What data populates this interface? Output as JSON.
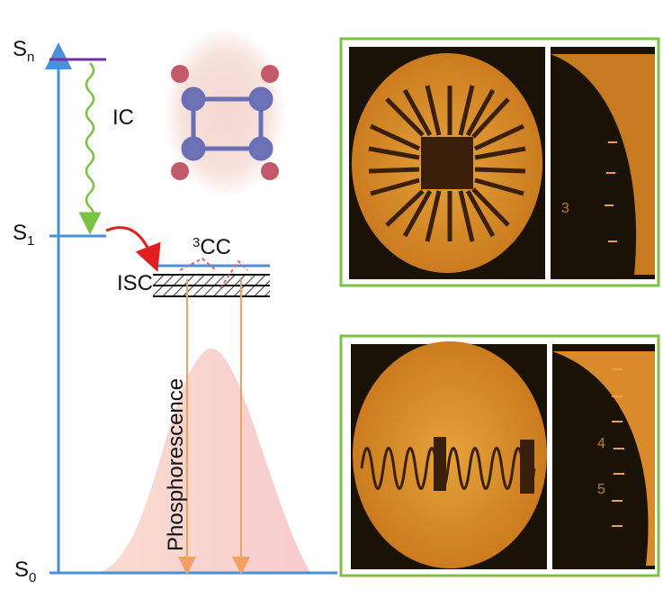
{
  "levels": [
    {
      "symbol": "S",
      "subscript": "n"
    },
    {
      "symbol": "S",
      "subscript": "1"
    },
    {
      "symbol": "S",
      "subscript": "0"
    }
  ],
  "transitions": {
    "internal_conversion": "IC",
    "intersystem_crossing": "ISC",
    "emission": "Phosphorescence"
  },
  "triplet_state": {
    "superscript": "3",
    "label": "CC"
  },
  "ruler_labels": [
    "3",
    "4",
    "5"
  ]
}
